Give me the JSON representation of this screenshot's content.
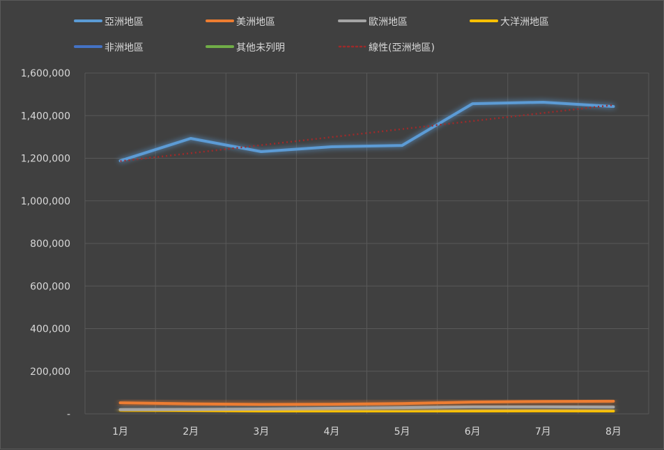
{
  "chart_data": {
    "type": "line",
    "title": "",
    "categories": [
      "1月",
      "2月",
      "3月",
      "4月",
      "5月",
      "6月",
      "7月",
      "8月"
    ],
    "ylim": [
      0,
      1600000
    ],
    "yticks": [
      0,
      200000,
      400000,
      600000,
      800000,
      1000000,
      1200000,
      1400000,
      1600000
    ],
    "ytick_labels": [
      "-",
      "200,000",
      "400,000",
      "600,000",
      "800,000",
      "1,000,000",
      "1,200,000",
      "1,400,000",
      "1,600,000"
    ],
    "grid": true,
    "legend_position": "top",
    "series": [
      {
        "name": "亞洲地區",
        "color": "#5b9bd5",
        "values": [
          1188000,
          1293000,
          1231000,
          1254000,
          1260000,
          1456000,
          1463000,
          1443000
        ]
      },
      {
        "name": "美洲地區",
        "color": "#ed7d31",
        "values": [
          52000,
          47000,
          44000,
          45000,
          48000,
          55000,
          58000,
          59000
        ]
      },
      {
        "name": "歐洲地區",
        "color": "#a5a5a5",
        "values": [
          20000,
          21000,
          23000,
          26000,
          29000,
          33000,
          33000,
          32000
        ]
      },
      {
        "name": "大洋洲地區",
        "color": "#ffc000",
        "values": [
          18000,
          16000,
          13000,
          12000,
          11000,
          13000,
          14000,
          13000
        ]
      },
      {
        "name": "非洲地區",
        "color": "#4472c4",
        "values": [
          2000,
          2000,
          2000,
          2000,
          2000,
          2000,
          2000,
          2000
        ]
      },
      {
        "name": "其他未列明",
        "color": "#70ad47",
        "values": [
          3000,
          3000,
          3000,
          3000,
          3000,
          3000,
          3000,
          3000
        ]
      }
    ],
    "trendline": {
      "name": "線性(亞洲地區)",
      "color": "#9e2a2a",
      "start": 1186000,
      "end": 1450000
    }
  }
}
